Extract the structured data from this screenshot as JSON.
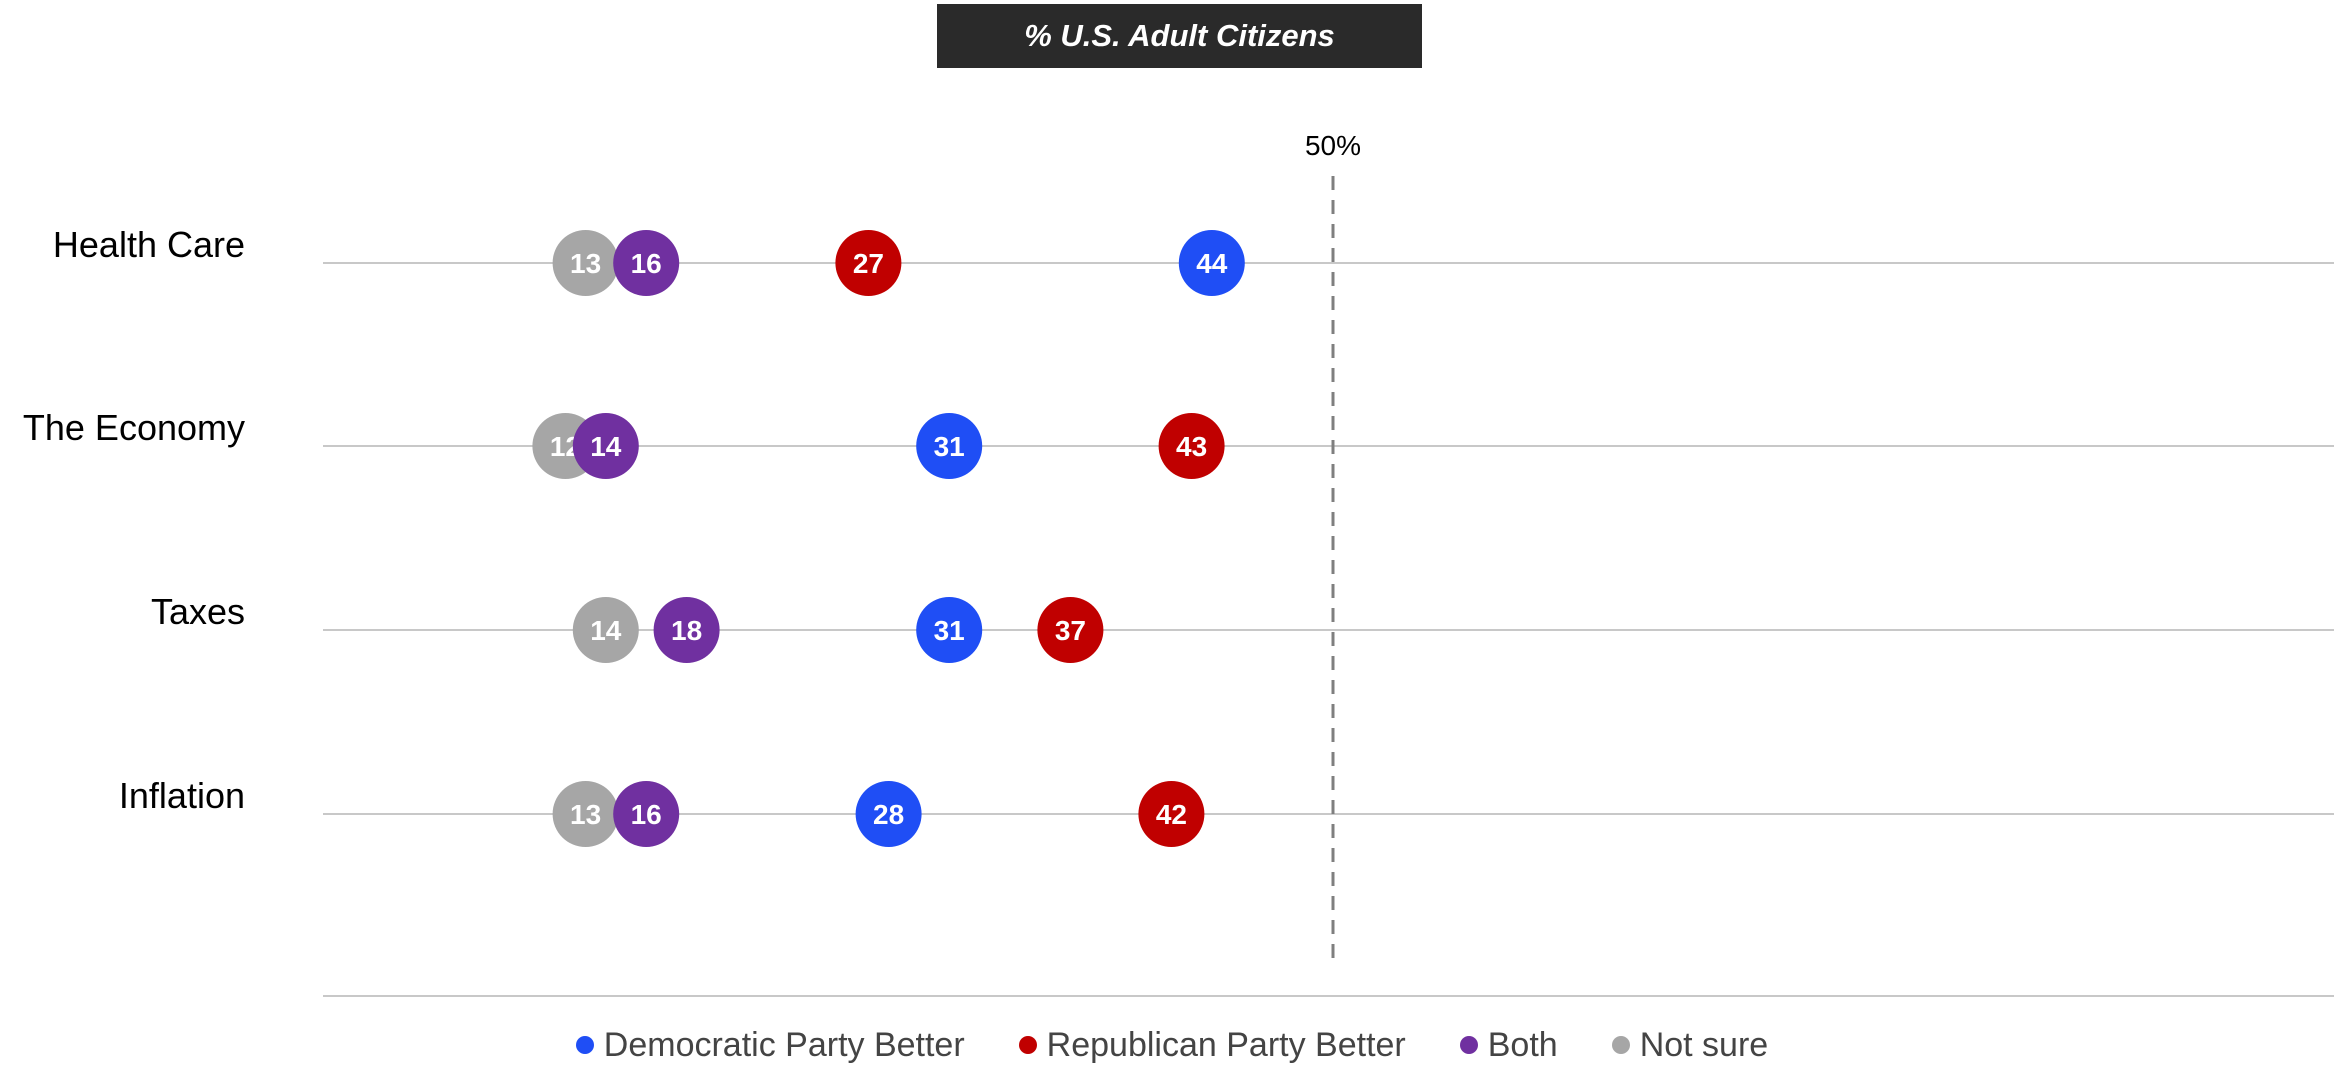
{
  "chart_data": {
    "type": "scatter",
    "title": "% U.S. Adult Citizens",
    "categories": [
      "Health Care",
      "The Economy",
      "Taxes",
      "Inflation"
    ],
    "series": [
      {
        "name": "Democratic Party Better",
        "color": "#1f4ef5",
        "values": [
          44,
          31,
          31,
          28
        ]
      },
      {
        "name": "Republican Party Better",
        "color": "#c00000",
        "values": [
          27,
          43,
          37,
          42
        ]
      },
      {
        "name": "Both",
        "color": "#7030a0",
        "values": [
          16,
          14,
          18,
          16
        ]
      },
      {
        "name": "Not sure",
        "color": "#a6a6a6",
        "values": [
          13,
          12,
          14,
          13
        ]
      }
    ],
    "draw_order": [
      "Not sure",
      "Both",
      "Republican Party Better",
      "Democratic Party Better"
    ],
    "xlim": [
      0,
      100
    ],
    "reference_line": {
      "value": 50,
      "label": "50%",
      "style": "dashed"
    },
    "grid": true,
    "legend_position": "bottom"
  }
}
